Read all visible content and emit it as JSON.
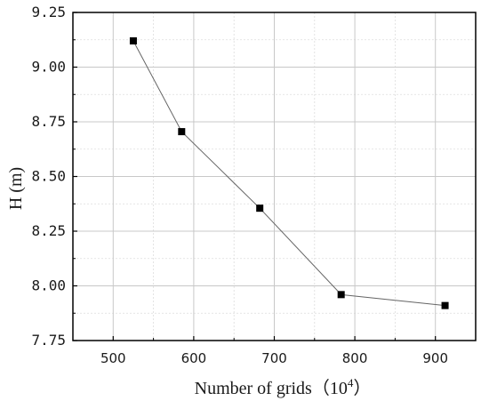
{
  "chart_data": {
    "type": "line",
    "title": "",
    "xlabel": "Number of grids（10",
    "xlabel_sup": "4",
    "xlabel_close": "）",
    "ylabel": "H (m)",
    "xlim": [
      450,
      950
    ],
    "ylim": [
      7.75,
      9.25
    ],
    "x_ticks": [
      500,
      600,
      700,
      800,
      900
    ],
    "x_tick_labels": [
      "500",
      "600",
      "700",
      "800",
      "900"
    ],
    "y_ticks": [
      7.75,
      8.0,
      8.25,
      8.5,
      8.75,
      9.0,
      9.25
    ],
    "y_tick_labels": [
      "7.75",
      "8.00",
      "8.25",
      "8.50",
      "8.75",
      "9.00",
      "9.25"
    ],
    "grid": true,
    "minor_grid": true,
    "marker": "square",
    "colors": {
      "line": "#666666",
      "marker": "#000000",
      "grid_major": "#c8c8c8",
      "grid_minor": "#dddddd",
      "frame": "#000000"
    },
    "series": [
      {
        "x": [
          525,
          585,
          682,
          783,
          912
        ],
        "y": [
          9.12,
          8.705,
          8.355,
          7.96,
          7.91
        ]
      }
    ]
  }
}
